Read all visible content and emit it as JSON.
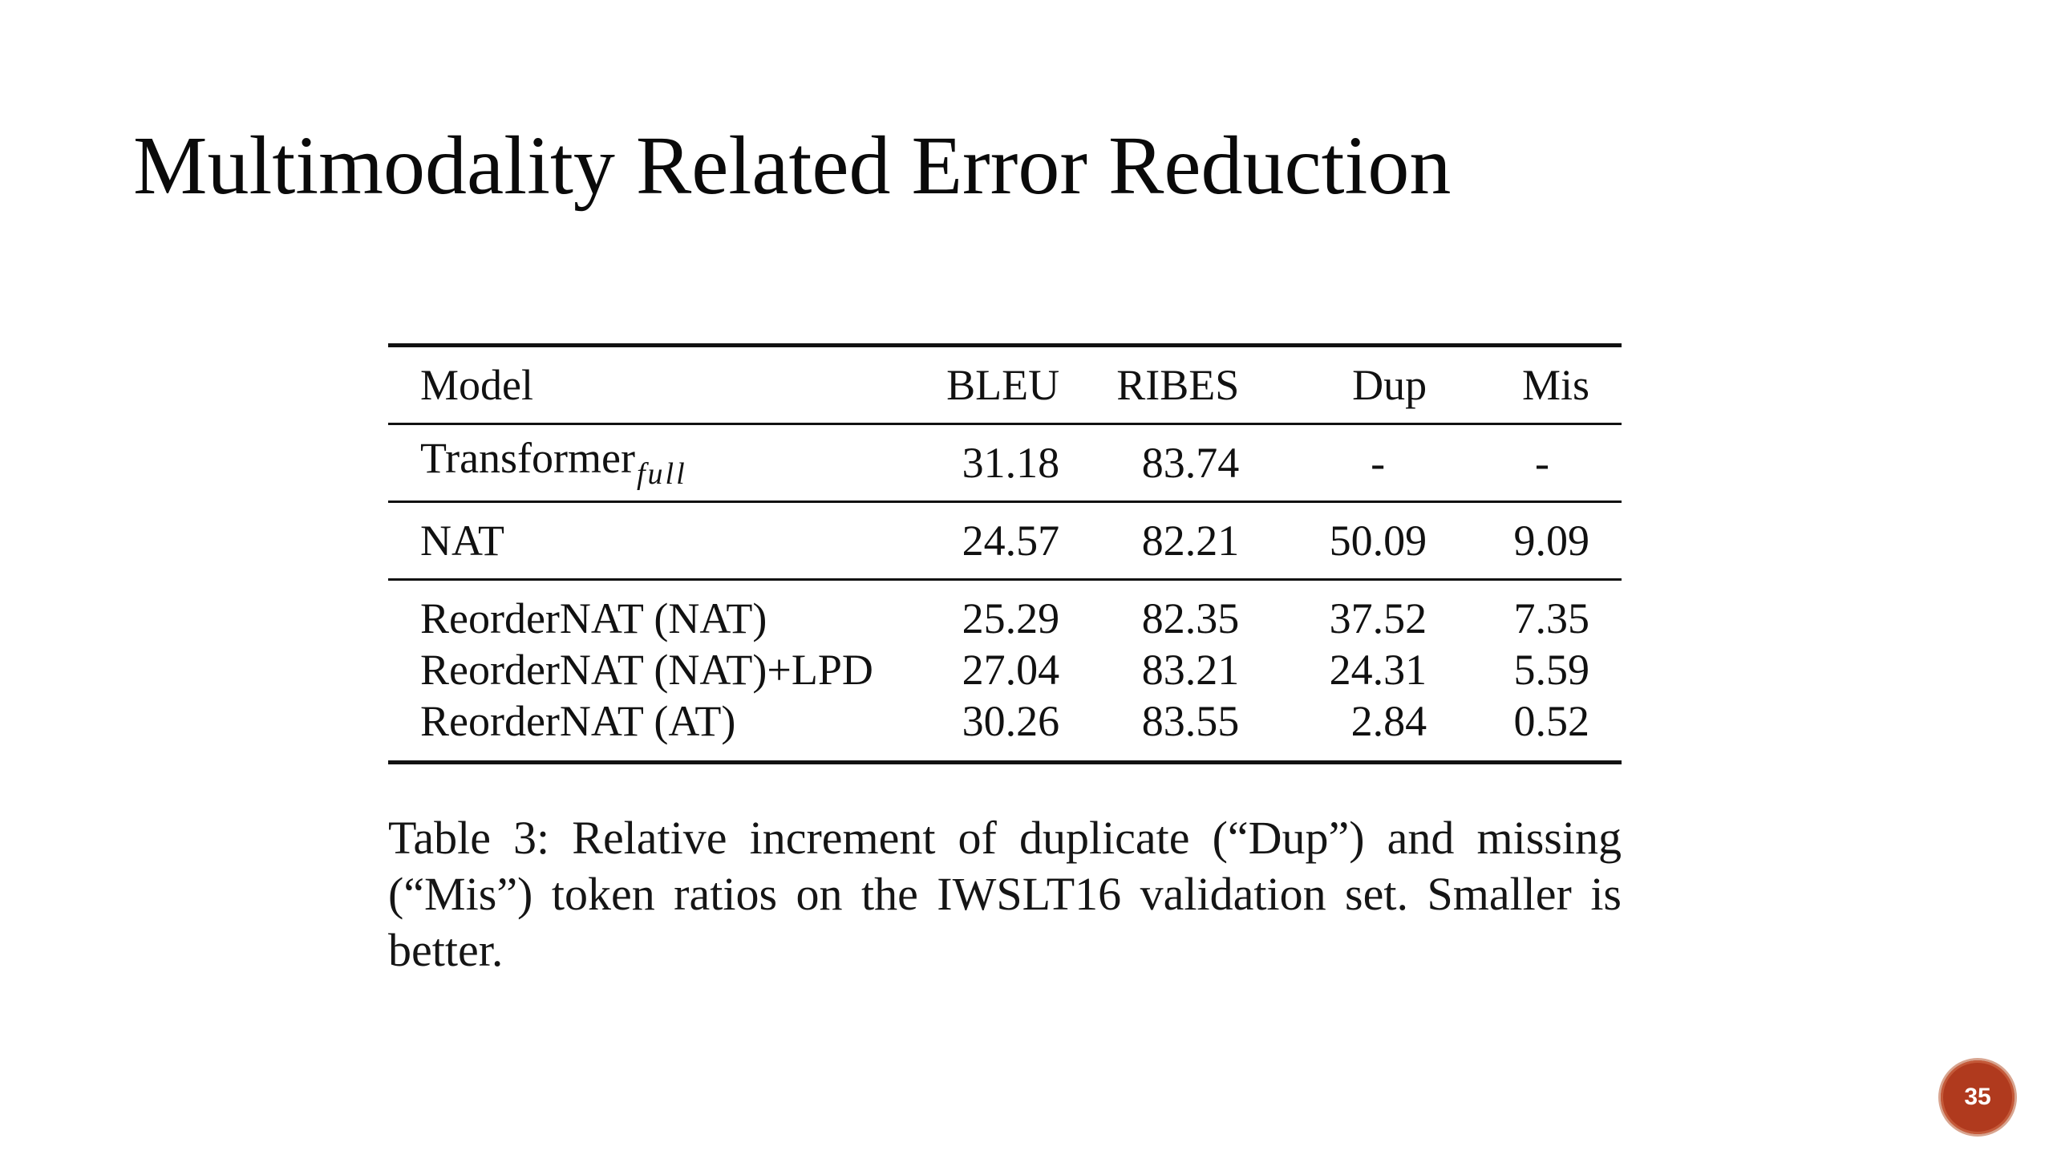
{
  "slide": {
    "title": "Multimodality Related Error Reduction",
    "page_number": "35"
  },
  "table": {
    "columns": [
      "Model",
      "BLEU",
      "RIBES",
      "Dup",
      "Mis"
    ],
    "rows": [
      {
        "model": "Transformer",
        "model_subscript": "full",
        "bleu": "31.18",
        "ribes": "83.74",
        "dup": "-",
        "mis": "-"
      },
      {
        "model": "NAT",
        "bleu": "24.57",
        "ribes": "82.21",
        "dup": "50.09",
        "mis": "9.09"
      },
      {
        "model": "ReorderNAT (NAT)",
        "bleu": "25.29",
        "ribes": "82.35",
        "dup": "37.52",
        "mis": "7.35"
      },
      {
        "model": "ReorderNAT (NAT)+LPD",
        "bleu": "27.04",
        "ribes": "83.21",
        "dup": "24.31",
        "mis": "5.59"
      },
      {
        "model": "ReorderNAT (AT)",
        "bleu": "30.26",
        "ribes": "83.55",
        "dup": "2.84",
        "mis": "0.52"
      }
    ],
    "caption": "Table 3: Relative increment of duplicate (“Dup”) and missing (“Mis”) token ratios on the IWSLT16 validation set. Smaller is better."
  },
  "colors": {
    "text": "#111111",
    "badge": "#b03a1e"
  }
}
